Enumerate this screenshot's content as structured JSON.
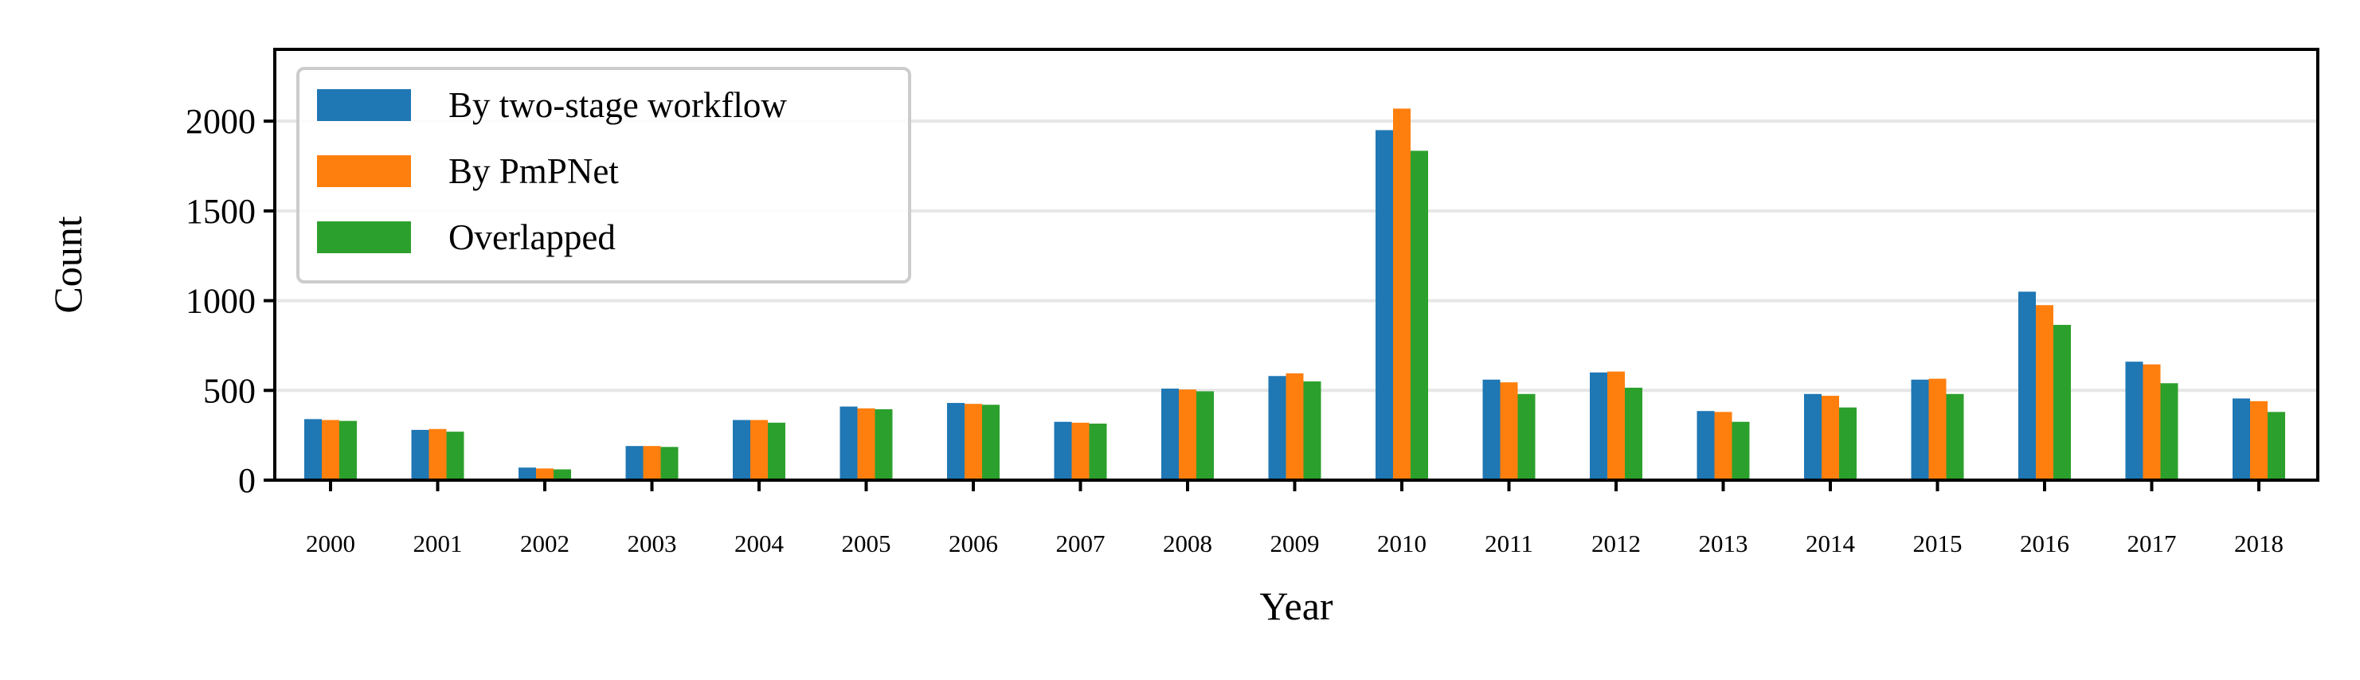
{
  "chart_data": {
    "type": "bar",
    "xlabel": "Year",
    "ylabel": "Count",
    "ylim": [
      0,
      2400
    ],
    "yticks": [
      0,
      500,
      1000,
      1500,
      2000
    ],
    "grid": "horizontal",
    "legend_position": "top-left",
    "categories": [
      "2000",
      "2001",
      "2002",
      "2003",
      "2004",
      "2005",
      "2006",
      "2007",
      "2008",
      "2009",
      "2010",
      "2011",
      "2012",
      "2013",
      "2014",
      "2015",
      "2016",
      "2017",
      "2018"
    ],
    "series": [
      {
        "name": "By two-stage workflow",
        "color": "#1f77b4",
        "values": [
          340,
          280,
          70,
          190,
          335,
          410,
          430,
          325,
          510,
          580,
          1950,
          560,
          600,
          385,
          480,
          560,
          1050,
          660,
          455
        ]
      },
      {
        "name": "By PmPNet",
        "color": "#ff7f0e",
        "values": [
          335,
          285,
          65,
          190,
          335,
          400,
          425,
          320,
          505,
          595,
          2070,
          545,
          605,
          380,
          470,
          565,
          975,
          645,
          440
        ]
      },
      {
        "name": "Overlapped",
        "color": "#2ca02c",
        "values": [
          330,
          270,
          60,
          185,
          320,
          395,
          420,
          315,
          495,
          550,
          1835,
          480,
          515,
          325,
          405,
          480,
          865,
          540,
          380
        ]
      }
    ]
  }
}
